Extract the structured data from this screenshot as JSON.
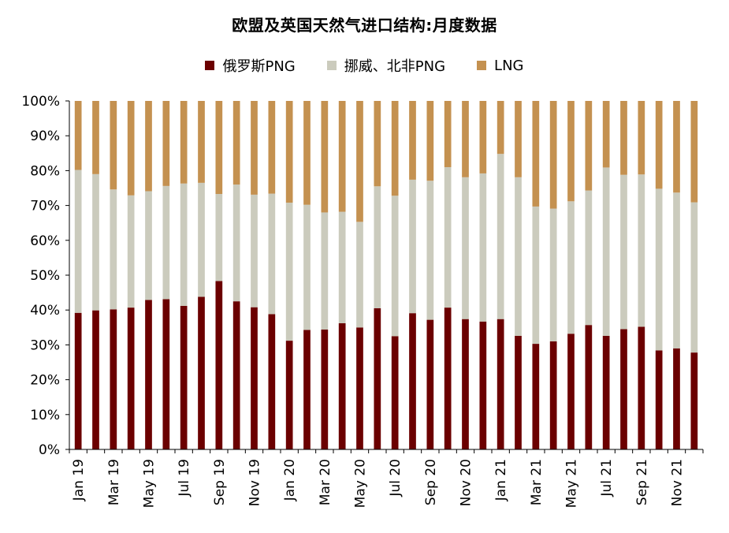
{
  "chart_data": {
    "type": "bar",
    "stacked": true,
    "title": "欧盟及英国天然气进口结构:月度数据",
    "xlabel": "",
    "ylabel": "",
    "ylim": [
      0,
      100
    ],
    "y_ticks": [
      "0%",
      "10%",
      "20%",
      "30%",
      "40%",
      "50%",
      "60%",
      "70%",
      "80%",
      "90%",
      "100%"
    ],
    "legend_position": "top",
    "categories": [
      "Jan 19",
      "Feb 19",
      "Mar 19",
      "Apr 19",
      "May 19",
      "Jun 19",
      "Jul 19",
      "Aug 19",
      "Sep 19",
      "Oct 19",
      "Nov 19",
      "Dec 19",
      "Jan 20",
      "Feb 20",
      "Mar 20",
      "Apr 20",
      "May 20",
      "Jun 20",
      "Jul 20",
      "Aug 20",
      "Sep 20",
      "Oct 20",
      "Nov 20",
      "Dec 20",
      "Jan 21",
      "Feb 21",
      "Mar 21",
      "Apr 21",
      "May 21",
      "Jun 21",
      "Jul 21",
      "Aug 21",
      "Sep 21",
      "Oct 21",
      "Nov 21",
      "Dec 21"
    ],
    "x_tick_labels": [
      "Jan 19",
      "",
      "Mar 19",
      "",
      "May 19",
      "",
      "Jul 19",
      "",
      "Sep 19",
      "",
      "Nov 19",
      "",
      "Jan 20",
      "",
      "Mar 20",
      "",
      "May 20",
      "",
      "Jul 20",
      "",
      "Sep 20",
      "",
      "Nov 20",
      "",
      "Jan 21",
      "",
      "Mar 21",
      "",
      "May 21",
      "",
      "Jul 21",
      "",
      "Sep 21",
      "",
      "Nov 21",
      ""
    ],
    "series": [
      {
        "name": "俄罗斯PNG",
        "color": "#6b0000",
        "values": [
          39.2,
          39.9,
          40.2,
          40.7,
          42.9,
          43.1,
          41.2,
          43.8,
          48.3,
          42.5,
          40.8,
          38.8,
          31.2,
          34.3,
          34.4,
          36.2,
          35.0,
          40.5,
          32.5,
          39.1,
          37.2,
          40.7,
          37.4,
          36.7,
          37.4,
          32.6,
          30.3,
          31.0,
          33.2,
          35.7,
          32.6,
          34.5,
          35.2,
          28.4,
          29.0,
          27.8
        ]
      },
      {
        "name": "挪威、北非PNG",
        "color": "#cbcbbd",
        "values": [
          41.0,
          39.1,
          34.4,
          32.2,
          31.2,
          32.5,
          35.1,
          32.7,
          25.0,
          33.5,
          32.3,
          34.6,
          39.6,
          35.9,
          33.6,
          32.0,
          30.3,
          35.0,
          40.3,
          38.3,
          39.9,
          40.3,
          40.7,
          42.5,
          47.4,
          45.5,
          39.4,
          38.1,
          38.0,
          38.6,
          48.3,
          44.3,
          43.7,
          46.4,
          44.7,
          43.1
        ]
      },
      {
        "name": "LNG",
        "color": "#c49150",
        "values": [
          19.8,
          21.0,
          25.4,
          27.1,
          25.9,
          24.4,
          23.7,
          23.5,
          26.7,
          24.0,
          26.9,
          26.6,
          29.2,
          29.8,
          32.0,
          31.8,
          34.7,
          24.5,
          27.2,
          22.6,
          22.9,
          19.0,
          21.9,
          20.8,
          15.2,
          21.9,
          30.3,
          30.9,
          28.8,
          25.7,
          19.1,
          21.2,
          21.1,
          25.2,
          26.3,
          29.1
        ]
      }
    ]
  }
}
